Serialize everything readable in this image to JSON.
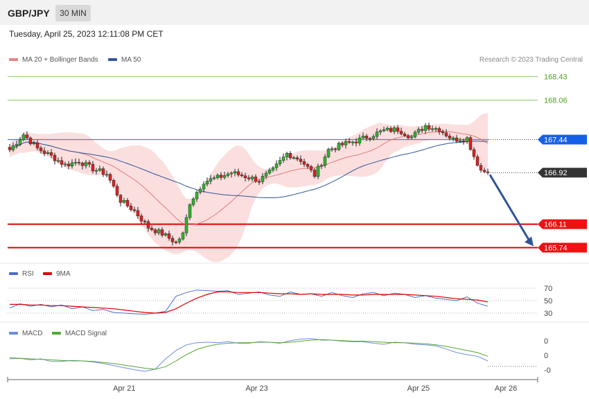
{
  "header": {
    "symbol": "GBP/JPY",
    "timeframe": "30 MIN"
  },
  "datetime": "Tuesday, April 25, 2023 12:11:08 PM CET",
  "credit": "Research © 2023 Trading Central",
  "colors": {
    "bollinger": "#f08080",
    "ma50": "#2f5597",
    "rsi": "#4a6fd0",
    "rsi_ma": "#dd0000",
    "macd": "#6b8de0",
    "macd_signal": "#55a632",
    "resistance": "#8fc85f",
    "support": "#e00000",
    "arrow": "#2f5597"
  },
  "chart_data": [
    {
      "type": "candlestick",
      "name": "price",
      "legend": [
        {
          "label": "MA 20 + Bollinger Bands",
          "color": "#f08080"
        },
        {
          "label": "MA 50",
          "color": "#2f5597"
        }
      ],
      "ylim": [
        165.55,
        168.6
      ],
      "levels": [
        {
          "value": 168.43,
          "label": "168.43",
          "kind": "resistance"
        },
        {
          "value": 168.06,
          "label": "168.06",
          "kind": "resistance"
        },
        {
          "value": 167.44,
          "label": "167.44",
          "kind": "pivot"
        },
        {
          "value": 166.92,
          "label": "166.92",
          "kind": "current"
        },
        {
          "value": 166.11,
          "label": "166.11",
          "kind": "support"
        },
        {
          "value": 165.74,
          "label": "165.74",
          "kind": "support"
        }
      ],
      "close_path": [
        [
          0,
          167.28
        ],
        [
          4,
          167.52
        ],
        [
          8,
          167.3
        ],
        [
          12,
          167.18
        ],
        [
          16,
          167.04
        ],
        [
          20,
          167.1
        ],
        [
          24,
          166.98
        ],
        [
          28,
          166.9
        ],
        [
          32,
          166.48
        ],
        [
          36,
          166.32
        ],
        [
          40,
          166.06
        ],
        [
          44,
          165.96
        ],
        [
          48,
          165.82
        ],
        [
          50,
          165.95
        ],
        [
          52,
          166.45
        ],
        [
          56,
          166.78
        ],
        [
          60,
          166.84
        ],
        [
          64,
          166.92
        ],
        [
          68,
          166.86
        ],
        [
          72,
          166.8
        ],
        [
          76,
          166.96
        ],
        [
          80,
          167.22
        ],
        [
          84,
          167.12
        ],
        [
          88,
          166.88
        ],
        [
          92,
          167.28
        ],
        [
          96,
          167.36
        ],
        [
          100,
          167.42
        ],
        [
          104,
          167.5
        ],
        [
          108,
          167.58
        ],
        [
          112,
          167.6
        ],
        [
          116,
          167.48
        ],
        [
          120,
          167.66
        ],
        [
          124,
          167.6
        ],
        [
          128,
          167.44
        ],
        [
          132,
          167.46
        ],
        [
          134,
          167.18
        ],
        [
          136,
          166.96
        ],
        [
          138,
          166.92
        ]
      ],
      "forecast_target": 165.74
    },
    {
      "type": "line",
      "name": "RSI",
      "legend": [
        {
          "label": "RSI",
          "color": "#4a6fd0"
        },
        {
          "label": "9MA",
          "color": "#dd0000"
        }
      ],
      "yticks": [
        70,
        50,
        30
      ],
      "series": [
        {
          "name": "RSI",
          "values": [
            38,
            45,
            41,
            44,
            40,
            43,
            37,
            40,
            34,
            36,
            31,
            30,
            29,
            28,
            30,
            33,
            57,
            63,
            67,
            66,
            65,
            66,
            60,
            62,
            64,
            59,
            57,
            64,
            60,
            61,
            57,
            63,
            58,
            55,
            61,
            63,
            58,
            62,
            60,
            55,
            58,
            54,
            52,
            50,
            56,
            46,
            41
          ]
        },
        {
          "name": "9MA",
          "values": [
            44,
            44,
            43,
            43,
            42,
            42,
            41,
            40,
            39,
            38,
            37,
            35,
            33,
            31,
            30,
            31,
            37,
            46,
            54,
            60,
            64,
            64,
            63,
            63,
            63,
            62,
            61,
            61,
            60,
            61,
            60,
            60,
            60,
            59,
            59,
            60,
            60,
            60,
            60,
            59,
            58,
            57,
            55,
            53,
            52,
            51,
            48
          ]
        }
      ]
    },
    {
      "type": "line",
      "name": "MACD",
      "legend": [
        {
          "label": "MACD",
          "color": "#6b8de0"
        },
        {
          "label": "MACD Signal",
          "color": "#55a632"
        }
      ],
      "yticks": [
        "0",
        "0",
        "-0"
      ],
      "series": [
        {
          "name": "MACD",
          "values": [
            0.0,
            0.01,
            -0.02,
            0.0,
            -0.05,
            -0.05,
            -0.03,
            -0.04,
            -0.06,
            -0.09,
            -0.13,
            -0.17,
            -0.21,
            -0.24,
            -0.2,
            0.0,
            0.16,
            0.27,
            0.31,
            0.32,
            0.31,
            0.33,
            0.3,
            0.3,
            0.33,
            0.32,
            0.3,
            0.35,
            0.38,
            0.39,
            0.36,
            0.36,
            0.34,
            0.33,
            0.33,
            0.3,
            0.28,
            0.32,
            0.31,
            0.28,
            0.27,
            0.25,
            0.19,
            0.12,
            0.08,
            0.05,
            -0.04
          ]
        },
        {
          "name": "MACD Signal",
          "values": [
            0.02,
            0.01,
            0.0,
            -0.01,
            -0.02,
            -0.03,
            -0.04,
            -0.04,
            -0.05,
            -0.07,
            -0.09,
            -0.12,
            -0.15,
            -0.18,
            -0.2,
            -0.15,
            -0.04,
            0.08,
            0.18,
            0.24,
            0.28,
            0.3,
            0.31,
            0.31,
            0.32,
            0.32,
            0.31,
            0.32,
            0.34,
            0.36,
            0.37,
            0.36,
            0.35,
            0.34,
            0.34,
            0.33,
            0.32,
            0.31,
            0.31,
            0.3,
            0.29,
            0.27,
            0.24,
            0.2,
            0.16,
            0.12,
            0.05
          ]
        }
      ]
    }
  ],
  "x_axis": {
    "labels": [
      {
        "label": "Apr 21",
        "pos": 0.22
      },
      {
        "label": "Apr 23",
        "pos": 0.47
      },
      {
        "label": "Apr 25",
        "pos": 0.775
      },
      {
        "label": "Apr 26",
        "pos": 0.94
      }
    ]
  }
}
